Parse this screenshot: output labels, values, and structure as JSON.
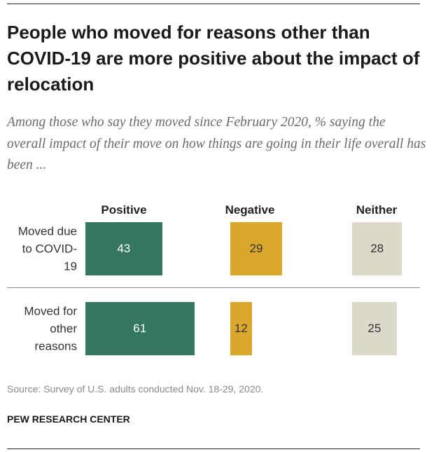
{
  "chart_data": {
    "type": "bar",
    "title": "People who moved for reasons other than COVID-19 are more positive about the impact of relocation",
    "subtitle": "Among those who say they moved since February 2020, % saying the overall impact of their move on how things are going in their life overall has been ...",
    "categories": [
      "Moved due to COVID-19",
      "Moved for other reasons"
    ],
    "series": [
      {
        "name": "Positive",
        "color": "#33785f",
        "values": [
          43,
          61
        ]
      },
      {
        "name": "Negative",
        "color": "#d9a82c",
        "values": [
          29,
          12
        ]
      },
      {
        "name": "Neither",
        "color": "#dcd9cb",
        "values": [
          28,
          25
        ]
      }
    ],
    "source": "Source: Survey of U.S. adults conducted Nov. 18-29, 2020.",
    "credit": "PEW RESEARCH CENTER"
  }
}
